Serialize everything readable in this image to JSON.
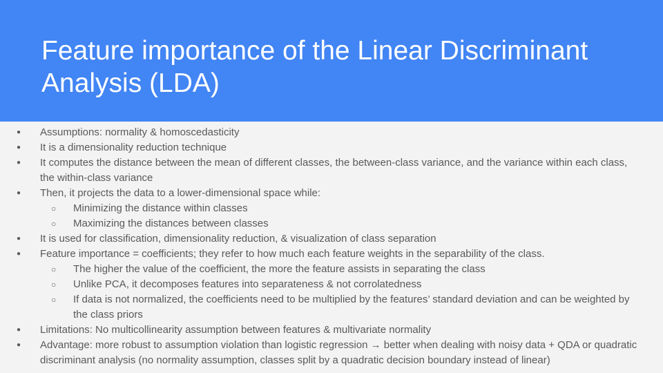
{
  "slide": {
    "title": "Feature importance of the Linear Discriminant Analysis (LDA)",
    "bullets": [
      {
        "text": "Assumptions: normality & homoscedasticity",
        "sub": []
      },
      {
        "text": "It is a dimensionality reduction technique",
        "sub": []
      },
      {
        "text": "It computes the distance between the mean of different classes, the between-class variance, and the variance within each class, the within-class variance",
        "sub": []
      },
      {
        "text": "Then, it projects the data to a lower-dimensional space while:",
        "sub": [
          "Minimizing the distance within classes",
          "Maximizing the distances between classes"
        ]
      },
      {
        "text": "It is used for classification, dimensionality reduction, & visualization of class separation",
        "sub": []
      },
      {
        "text": "Feature importance = coefficients; they refer to how much each feature weights in the separability of the class.",
        "sub": [
          "The higher the value of the coefficient, the more the feature assists in separating the class",
          "Unlike PCA, it decomposes features into separateness & not corrolatedness",
          "If data is not normalized, the coefficients need to be multiplied by the features’ standard deviation and can be weighted by the class priors"
        ]
      },
      {
        "text": "Limitations: No multicollinearity assumption between features & multivariate normality",
        "sub": []
      },
      {
        "text": "Advantage: more robust to assumption violation than logistic regression → better when dealing with noisy data + QDA or quadratic discriminant analysis (no normality assumption, classes split by a quadratic decision boundary instead of linear)",
        "sub": []
      }
    ]
  },
  "colors": {
    "header_bg": "#4285f4",
    "slide_bg": "#f3f3f3",
    "title_text": "#ffffff",
    "body_text": "#595959"
  }
}
